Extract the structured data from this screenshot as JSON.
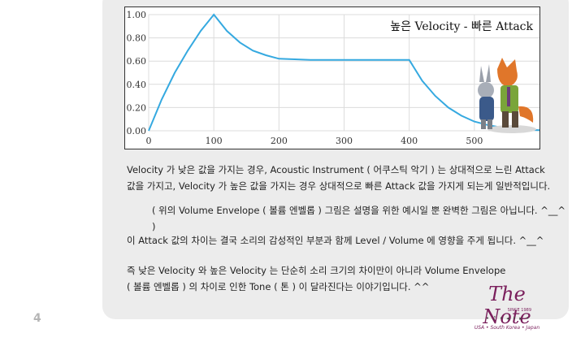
{
  "page_number": "4",
  "chart_data": {
    "type": "line",
    "title": "높은 Velocity - 빠른 Attack",
    "xlabel": "",
    "ylabel": "",
    "xlim": [
      0,
      600
    ],
    "ylim": [
      0,
      1.0
    ],
    "x_ticks": [
      "0",
      "100",
      "200",
      "300",
      "400",
      "500"
    ],
    "y_ticks": [
      "0.00",
      "0.20",
      "0.40",
      "0.60",
      "0.80",
      "1.00"
    ],
    "grid": true,
    "series": [
      {
        "x": [
          0,
          20,
          40,
          60,
          80,
          100,
          120,
          140,
          160,
          180,
          200,
          250,
          300,
          350,
          400,
          420,
          440,
          460,
          480,
          500,
          520,
          540,
          560,
          580,
          600
        ],
        "values": [
          0.0,
          0.27,
          0.5,
          0.69,
          0.86,
          1.0,
          0.86,
          0.76,
          0.69,
          0.65,
          0.62,
          0.61,
          0.61,
          0.61,
          0.61,
          0.43,
          0.3,
          0.2,
          0.13,
          0.08,
          0.05,
          0.03,
          0.015,
          0.01,
          0.005
        ],
        "color": "#35a9e0"
      }
    ]
  },
  "paragraphs": [
    {
      "lines": [
        "Velocity 가 낮은 값을 가지는 경우, Acoustic Instrument ( 어쿠스틱 악기 ) 는 상대적으로 느린 Attack",
        "값을 가지고, Velocity 가 높은 값을 가지는 경우 상대적으로 빠른 Attack 값을 가지게 되는게 일반적입니다."
      ]
    },
    {
      "lines": [
        "( 위의 Volume Envelope ( 볼륨 엔벨롭 ) 그림은 설명을 위한 예시일 뿐 완벽한 그림은 아닙니다. ^__^ )"
      ]
    },
    {
      "lines": [
        "이 Attack 값의 차이는 결국 소리의 감성적인 부분과 함께 Level / Volume 에 영향을 주게 됩니다. ^__^"
      ]
    },
    {
      "lines": [
        "즉 낮은 Velocity 와 높은 Velocity 는 단순히 소리 크기의 차이만이 아니라 Volume Envelope",
        "( 볼륨 엔벨롭 ) 의 차이로 인한 Tone ( 톤 ) 이 달라진다는 이야기입니다. ^^"
      ]
    }
  ],
  "logo": {
    "title": "The Note",
    "since": "SINCE 1989",
    "tagline": "USA • South Korea • Japan",
    "dots": "• ♪ • ◂ • ▸ •"
  }
}
